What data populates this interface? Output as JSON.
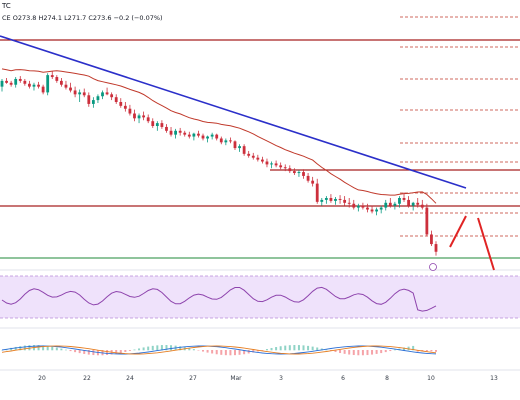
{
  "header": {
    "symbol": "TC",
    "ohlc_line": "CE  O273.8  H274.1  L271.7  C273.6  −0.2 (−0.07%)"
  },
  "chart_data": {
    "type": "candlestick",
    "title": "",
    "xlabel": "",
    "ylabel": "",
    "x_ticks": [
      "20",
      "22",
      "24",
      "27",
      "Mar",
      "3",
      "6",
      "8",
      "10",
      "13"
    ],
    "legend": "none",
    "grid": false,
    "panels": [
      "price",
      "rsi",
      "macd"
    ],
    "price_candles": [
      [
        66,
        74,
        61,
        72
      ],
      [
        72,
        75,
        69,
        70
      ],
      [
        70,
        72,
        66,
        68
      ],
      [
        68,
        76,
        65,
        74
      ],
      [
        74,
        77,
        70,
        72
      ],
      [
        72,
        74,
        67,
        69
      ],
      [
        69,
        72,
        64,
        66
      ],
      [
        66,
        70,
        62,
        68
      ],
      [
        68,
        71,
        64,
        66
      ],
      [
        66,
        68,
        58,
        60
      ],
      [
        60,
        80,
        57,
        78
      ],
      [
        78,
        82,
        74,
        76
      ],
      [
        76,
        78,
        70,
        72
      ],
      [
        72,
        75,
        66,
        68
      ],
      [
        68,
        72,
        63,
        65
      ],
      [
        65,
        70,
        60,
        62
      ],
      [
        62,
        66,
        55,
        58
      ],
      [
        58,
        63,
        50,
        60
      ],
      [
        60,
        64,
        55,
        57
      ],
      [
        57,
        60,
        45,
        48
      ],
      [
        48,
        55,
        44,
        52
      ],
      [
        52,
        58,
        49,
        56
      ],
      [
        56,
        62,
        53,
        60
      ],
      [
        60,
        65,
        57,
        58
      ],
      [
        58,
        60,
        52,
        55
      ],
      [
        55,
        58,
        48,
        50
      ],
      [
        50,
        54,
        44,
        46
      ],
      [
        46,
        50,
        40,
        43
      ],
      [
        43,
        47,
        36,
        38
      ],
      [
        38,
        42,
        30,
        33
      ],
      [
        33,
        38,
        28,
        36
      ],
      [
        36,
        40,
        31,
        34
      ],
      [
        34,
        37,
        28,
        30
      ],
      [
        30,
        33,
        23,
        25
      ],
      [
        25,
        30,
        20,
        28
      ],
      [
        28,
        31,
        22,
        24
      ],
      [
        24,
        27,
        18,
        20
      ],
      [
        20,
        24,
        14,
        16
      ],
      [
        16,
        22,
        12,
        20
      ],
      [
        20,
        23,
        15,
        18
      ],
      [
        18,
        20,
        14,
        16
      ],
      [
        16,
        19,
        12,
        14
      ],
      [
        14,
        18,
        10,
        17
      ],
      [
        17,
        20,
        13,
        15
      ],
      [
        15,
        17,
        10,
        12
      ],
      [
        12,
        15,
        8,
        14
      ],
      [
        14,
        18,
        11,
        16
      ],
      [
        16,
        17,
        10,
        12
      ],
      [
        12,
        14,
        6,
        8
      ],
      [
        8,
        12,
        5,
        10
      ],
      [
        10,
        13,
        7,
        9
      ],
      [
        9,
        10,
        0,
        2
      ],
      [
        2,
        6,
        -2,
        4
      ],
      [
        4,
        6,
        -6,
        -4
      ],
      [
        -4,
        -1,
        -8,
        -6
      ],
      [
        -6,
        -3,
        -10,
        -8
      ],
      [
        -8,
        -5,
        -12,
        -10
      ],
      [
        -10,
        -7,
        -14,
        -12
      ],
      [
        -12,
        -9,
        -18,
        -15
      ],
      [
        -15,
        -12,
        -19,
        -14
      ],
      [
        -14,
        -11,
        -18,
        -16
      ],
      [
        -16,
        -13,
        -20,
        -18
      ],
      [
        -18,
        -15,
        -22,
        -19
      ],
      [
        -19,
        -16,
        -24,
        -22
      ],
      [
        -22,
        -19,
        -26,
        -24
      ],
      [
        -24,
        -21,
        -28,
        -23
      ],
      [
        -23,
        -20,
        -30,
        -27
      ],
      [
        -27,
        -24,
        -34,
        -32
      ],
      [
        -32,
        -28,
        -38,
        -35
      ],
      [
        -35,
        -30,
        -56,
        -54
      ],
      [
        -54,
        -50,
        -58,
        -52
      ],
      [
        -52,
        -48,
        -56,
        -50
      ],
      [
        -50,
        -46,
        -55,
        -53
      ],
      [
        -53,
        -49,
        -57,
        -51
      ],
      [
        -51,
        -47,
        -56,
        -52
      ],
      [
        -52,
        -48,
        -58,
        -55
      ],
      [
        -55,
        -50,
        -60,
        -56
      ],
      [
        -56,
        -52,
        -62,
        -60
      ],
      [
        -60,
        -56,
        -64,
        -58
      ],
      [
        -58,
        -55,
        -62,
        -60
      ],
      [
        -60,
        -56,
        -65,
        -62
      ],
      [
        -62,
        -58,
        -66,
        -64
      ],
      [
        -64,
        -60,
        -68,
        -62
      ],
      [
        -62,
        -58,
        -66,
        -60
      ],
      [
        -60,
        -52,
        -63,
        -55
      ],
      [
        -55,
        -50,
        -60,
        -58
      ],
      [
        -58,
        -54,
        -62,
        -56
      ],
      [
        -56,
        -48,
        -60,
        -50
      ],
      [
        -50,
        -44,
        -54,
        -52
      ],
      [
        -52,
        -48,
        -60,
        -58
      ],
      [
        -58,
        -54,
        -63,
        -55
      ],
      [
        -55,
        -50,
        -60,
        -57
      ],
      [
        -57,
        -52,
        -62,
        -60
      ],
      [
        -60,
        -56,
        -90,
        -88
      ],
      [
        -88,
        -84,
        -100,
        -98
      ],
      [
        -98,
        -95,
        -110,
        -106
      ]
    ]
  },
  "colors": {
    "bull": "#089981",
    "bear": "#cc2f3c",
    "trendline": "#2b2fc9",
    "resistance": "#a62020",
    "support": "#1f8a3a",
    "ma": "#c0392b",
    "rsi_line": "#8e44ad",
    "rsi_band": "#efe2fb"
  }
}
